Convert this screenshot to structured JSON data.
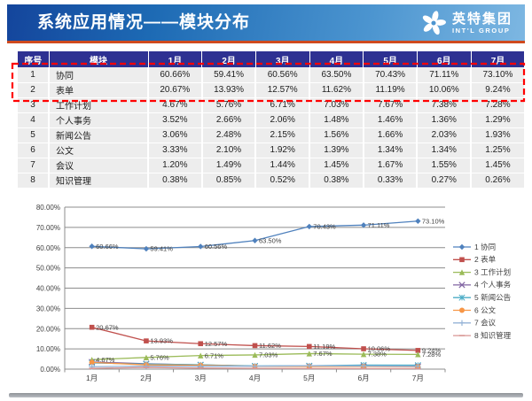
{
  "header": {
    "title": "系统应用情况——模块分布",
    "logo_cn": "英特集团",
    "logo_en": "INT'L GROUP",
    "logo_icon": "pinwheel-icon"
  },
  "colors": {
    "header_grad_start": "#14459c",
    "header_grad_mid": "#1d6ab4",
    "header_grad_end": "#7db7e2",
    "accent_orange": "#cf4a1e",
    "table_header_navy": "#2e3192",
    "table_row_bg": "#ededed",
    "highlight_red": "#ff0000",
    "chart_grid": "#8c8c8c",
    "chart_text": "#404040"
  },
  "table": {
    "col_headers": [
      "序号",
      "模块",
      "1月",
      "2月",
      "3月",
      "4月",
      "5月",
      "6月",
      "7月"
    ],
    "rows": [
      {
        "no": "1",
        "module": "协同",
        "values": [
          "60.66%",
          "59.41%",
          "60.56%",
          "63.50%",
          "70.43%",
          "71.11%",
          "73.10%"
        ]
      },
      {
        "no": "2",
        "module": "表单",
        "values": [
          "20.67%",
          "13.93%",
          "12.57%",
          "11.62%",
          "11.19%",
          "10.06%",
          "9.24%"
        ]
      },
      {
        "no": "3",
        "module": "工作计划",
        "values": [
          "4.67%",
          "5.76%",
          "6.71%",
          "7.03%",
          "7.67%",
          "7.38%",
          "7.28%"
        ]
      },
      {
        "no": "4",
        "module": "个人事务",
        "values": [
          "3.52%",
          "2.66%",
          "2.06%",
          "1.48%",
          "1.46%",
          "1.36%",
          "1.29%"
        ]
      },
      {
        "no": "5",
        "module": "新闻公告",
        "values": [
          "3.06%",
          "2.48%",
          "2.15%",
          "1.56%",
          "1.66%",
          "2.03%",
          "1.93%"
        ]
      },
      {
        "no": "6",
        "module": "公文",
        "values": [
          "3.33%",
          "2.10%",
          "1.92%",
          "1.39%",
          "1.34%",
          "1.34%",
          "1.25%"
        ]
      },
      {
        "no": "7",
        "module": "会议",
        "values": [
          "1.20%",
          "1.49%",
          "1.44%",
          "1.45%",
          "1.67%",
          "1.55%",
          "1.45%"
        ]
      },
      {
        "no": "8",
        "module": "知识管理",
        "values": [
          "0.38%",
          "0.85%",
          "0.52%",
          "0.38%",
          "0.33%",
          "0.27%",
          "0.26%"
        ]
      }
    ],
    "highlighted_rows": [
      "1 协同",
      "2 表单"
    ]
  },
  "chart_data": {
    "type": "line",
    "title": "",
    "xlabel": "",
    "ylabel": "",
    "categories": [
      "1月",
      "2月",
      "3月",
      "4月",
      "5月",
      "6月",
      "7月"
    ],
    "ylim": [
      0,
      80
    ],
    "ytick_step": 10,
    "yticks": [
      "0.00%",
      "10.00%",
      "20.00%",
      "30.00%",
      "40.00%",
      "50.00%",
      "60.00%",
      "70.00%",
      "80.00%"
    ],
    "grid": true,
    "legend_position": "right",
    "series": [
      {
        "name": "1 协同",
        "color": "#4F81BD",
        "marker": "diamond",
        "data_labels": true,
        "values": [
          60.66,
          59.41,
          60.56,
          63.5,
          70.43,
          71.11,
          73.1
        ]
      },
      {
        "name": "2 表单",
        "color": "#C0504D",
        "marker": "square",
        "data_labels": true,
        "values": [
          20.67,
          13.93,
          12.57,
          11.62,
          11.19,
          10.06,
          9.24
        ]
      },
      {
        "name": "3 工作计划",
        "color": "#9BBB59",
        "marker": "triangle",
        "data_labels": true,
        "values": [
          4.67,
          5.76,
          6.71,
          7.03,
          7.67,
          7.38,
          7.28
        ]
      },
      {
        "name": "4 个人事务",
        "color": "#8064A2",
        "marker": "x",
        "data_labels": false,
        "values": [
          3.52,
          2.66,
          2.06,
          1.48,
          1.46,
          1.36,
          1.29
        ]
      },
      {
        "name": "5 新闻公告",
        "color": "#4BACC6",
        "marker": "asterisk",
        "data_labels": false,
        "values": [
          3.06,
          2.48,
          2.15,
          1.56,
          1.66,
          2.03,
          1.93
        ]
      },
      {
        "name": "6 公文",
        "color": "#F79646",
        "marker": "circle",
        "data_labels": false,
        "values": [
          3.33,
          2.1,
          1.92,
          1.39,
          1.34,
          1.34,
          1.25
        ]
      },
      {
        "name": "7 会议",
        "color": "#95B3D7",
        "marker": "plus",
        "data_labels": false,
        "values": [
          1.2,
          1.49,
          1.44,
          1.45,
          1.67,
          1.55,
          1.45
        ]
      },
      {
        "name": "8 知识管理",
        "color": "#D99694",
        "marker": "dash",
        "data_labels": false,
        "values": [
          0.38,
          0.85,
          0.52,
          0.38,
          0.33,
          0.27,
          0.26
        ]
      }
    ]
  }
}
